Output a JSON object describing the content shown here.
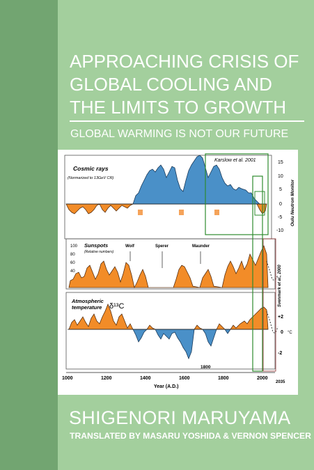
{
  "cover": {
    "title_lines": [
      "APPROACHING CRISIS OF",
      "GLOBAL COOLING AND",
      "THE LIMITS TO GROWTH"
    ],
    "subtitle": "GLOBAL WARMING IS NOT OUR FUTURE",
    "author": "SHIGENORI MARUYAMA",
    "translators": "TRANSLATED BY MASARU YOSHIDA & VERNON SPENCER",
    "colors": {
      "background": "#a3cf9d",
      "spine": "#72a571",
      "text": "#ffffff"
    }
  },
  "figure": {
    "annotation_karslow": "Karslow et al. 2001",
    "annotation_svensmark": "Svenmark et al., 2000",
    "cosmic": {
      "title": "Cosmic rays",
      "sublabel": "(Normarized to 13GeV CR)",
      "axis_label": "Oulu Neutron Monitor",
      "ticks": [
        "15",
        "10",
        "5",
        "0",
        "-5",
        "-10"
      ]
    },
    "sunspots": {
      "title": "Sunspots",
      "sublabel": "(Relative numbers)",
      "ticks": [
        "100",
        "80",
        "60",
        "40"
      ],
      "minima": [
        "Wolf",
        "Sperer",
        "Maunder"
      ]
    },
    "temperature": {
      "title_line1": "Atmospheric",
      "title_line2": "temperature",
      "symbol": "δ¹³C",
      "ticks": [
        "+2",
        "0",
        "-2"
      ],
      "unit": "°C",
      "annotation_1800": "1800"
    },
    "x_ticks": [
      "1000",
      "1200",
      "1400",
      "1600",
      "1800",
      "2000",
      "2035"
    ],
    "x_label": "Year (A.D.)"
  }
}
